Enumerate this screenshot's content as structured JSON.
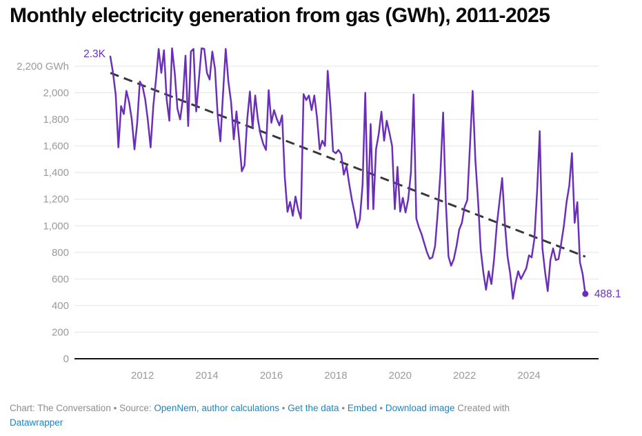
{
  "title": "Monthly electricity generation from gas (GWh), 2011-2025",
  "chart_data": {
    "type": "line",
    "title": "Monthly electricity generation from gas (GWh), 2011-2025",
    "unit": "GWh",
    "x_start": {
      "year": 2011,
      "month": 1
    },
    "x_end": {
      "year": 2025,
      "month": 10
    },
    "ylim": [
      0,
      2200
    ],
    "grid": true,
    "legend_position": "none",
    "y_ticks": [
      0,
      200,
      400,
      600,
      800,
      1000,
      1200,
      1400,
      1600,
      1800,
      2000,
      2200
    ],
    "y_tick_labels": [
      "0",
      "200",
      "400",
      "600",
      "800",
      "1,000",
      "1,200",
      "1,400",
      "1,600",
      "1,800",
      "2,000",
      "2,200 GWh"
    ],
    "x_tick_years": [
      2012,
      2014,
      2016,
      2018,
      2020,
      2022,
      2024
    ],
    "annotations": {
      "first_point_label": "2.3K",
      "last_point_label": "488.1"
    },
    "trend": {
      "style": "dashed",
      "color": "#383838",
      "start_value": 2150,
      "end_value": 768
    },
    "series": [
      {
        "name": "Monthly electricity generation from gas",
        "color": "#6a2fb8",
        "values": [
          2273,
          2150,
          1985,
          1590,
          1900,
          1840,
          2015,
          1930,
          1800,
          1575,
          1770,
          2085,
          2050,
          1950,
          1790,
          1590,
          1900,
          2100,
          2330,
          2150,
          2320,
          1950,
          1790,
          2335,
          2150,
          1880,
          1800,
          1950,
          2280,
          1750,
          2310,
          2330,
          1860,
          2100,
          2335,
          2330,
          2150,
          2100,
          2310,
          2180,
          1830,
          1635,
          2000,
          2330,
          2085,
          1930,
          1650,
          1860,
          1650,
          1410,
          1455,
          1800,
          2010,
          1735,
          1980,
          1800,
          1685,
          1615,
          1570,
          2020,
          1775,
          1870,
          1805,
          1755,
          1830,
          1365,
          1105,
          1180,
          1075,
          1220,
          1120,
          1055,
          1990,
          1945,
          1980,
          1870,
          1980,
          1815,
          1575,
          1640,
          1600,
          2165,
          1905,
          1560,
          1545,
          1570,
          1540,
          1385,
          1450,
          1315,
          1195,
          1100,
          985,
          1050,
          1310,
          2000,
          1126,
          1765,
          1125,
          1575,
          1690,
          1858,
          1640,
          1790,
          1700,
          1600,
          1125,
          1443,
          1107,
          1210,
          1100,
          1200,
          1400,
          1988,
          1055,
          988,
          936,
          867,
          800,
          752,
          762,
          847,
          1100,
          1400,
          1852,
          1180,
          769,
          700,
          750,
          847,
          971,
          1022,
          1141,
          1193,
          1600,
          2014,
          1500,
          1193,
          821,
          650,
          519,
          658,
          562,
          750,
          1003,
          1180,
          1359,
          1022,
          770,
          640,
          451,
          571,
          658,
          600,
          640,
          680,
          778,
          762,
          900,
          1250,
          1712,
          830,
          650,
          509,
          742,
          830,
          742,
          750,
          866,
          1000,
          1178,
          1300,
          1546,
          1022,
          1178,
          726,
          638,
          488.1
        ]
      }
    ]
  },
  "colors": {
    "line": "#6a2fb8",
    "trend": "#383838",
    "grid": "#e4e4e4",
    "baseline": "#111111",
    "tick_text": "#9a9a9a",
    "annotation": "#6a2fb8",
    "footer_text": "#8d8d8d",
    "footer_link": "#1786c6"
  },
  "footer": {
    "credit": "Chart: The Conversation",
    "bullet": "•",
    "source_label": "Source:",
    "source_link": "OpenNem, author calculations",
    "get_data": "Get the data",
    "embed": "Embed",
    "download": "Download image",
    "created_with": "Created with",
    "brand": "Datawrapper"
  }
}
